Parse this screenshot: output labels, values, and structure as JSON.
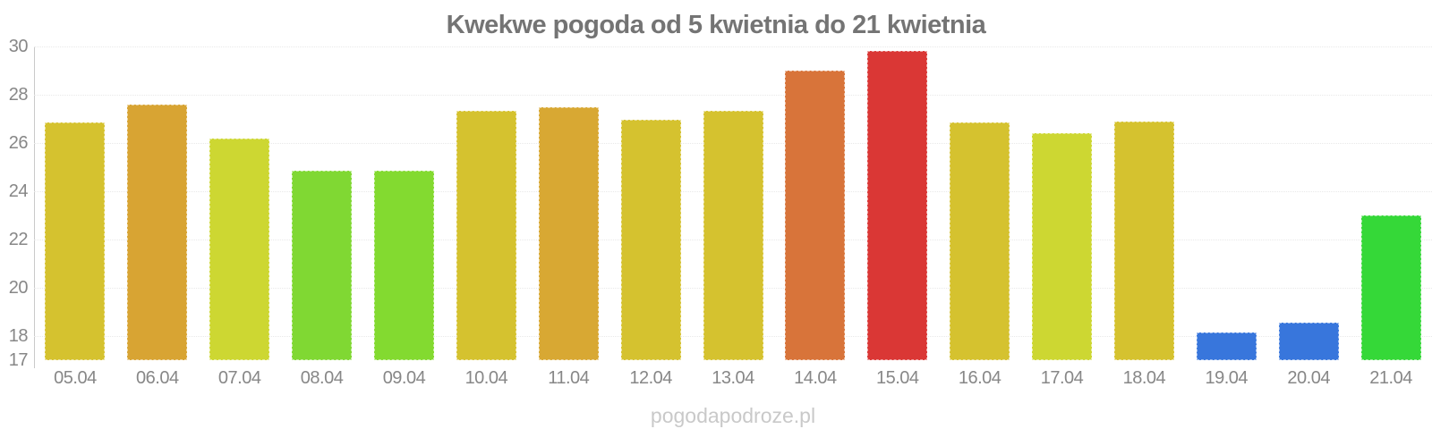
{
  "watermark": "pogodapodroze.pl",
  "chart_data": {
    "type": "bar",
    "title": "Kwekwe pogoda od 5 kwietnia do 21 kwietnia",
    "xlabel": "",
    "ylabel": "",
    "legend": "none",
    "grid": "horizontal-dotted",
    "ylim": [
      17,
      30
    ],
    "yticks": [
      30,
      28,
      26,
      24,
      22,
      20,
      18,
      17
    ],
    "categories": [
      "05.04",
      "06.04",
      "07.04",
      "08.04",
      "09.04",
      "10.04",
      "11.04",
      "12.04",
      "13.04",
      "14.04",
      "15.04",
      "16.04",
      "17.04",
      "18.04",
      "19.04",
      "20.04",
      "21.04"
    ],
    "values": [
      26.85,
      27.6,
      26.2,
      24.85,
      24.85,
      27.35,
      27.5,
      26.95,
      27.35,
      29.0,
      29.8,
      26.85,
      26.4,
      26.9,
      18.15,
      18.55,
      23.0
    ],
    "bar_colors": [
      "#d5c22f",
      "#d8a433",
      "#cdd732",
      "#80d833",
      "#83da30",
      "#d5c22f",
      "#d8a833",
      "#d5c22f",
      "#d5c22f",
      "#d8743a",
      "#da3735",
      "#d5c22f",
      "#cdd732",
      "#d5c22f",
      "#3876dc",
      "#3876dc",
      "#35d838"
    ],
    "colors": {
      "background": "#ffffff",
      "title_text": "#747474",
      "axis_label_text": "#878787",
      "axis_line": "#c9c9c9",
      "gridline": "#e9e9e9",
      "watermark_text": "#c9c9c9"
    }
  }
}
